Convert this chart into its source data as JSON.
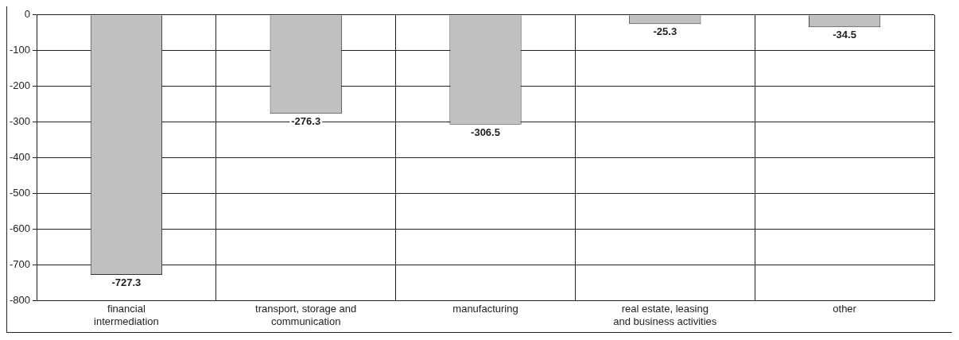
{
  "chart_data": {
    "type": "bar",
    "categories": [
      "financial intermediation",
      "transport, storage and communication",
      "manufacturing",
      "real estate, leasing and business activities",
      "other"
    ],
    "values": [
      -727.3,
      -276.3,
      -306.5,
      -25.3,
      -34.5
    ],
    "color": "#c0c0c0",
    "ylim": [
      -800,
      0
    ],
    "yticks": [
      0,
      -100,
      -200,
      -300,
      -400,
      -500,
      -600,
      -700,
      -800
    ],
    "grid": true,
    "data_labels": true,
    "legend": false
  }
}
